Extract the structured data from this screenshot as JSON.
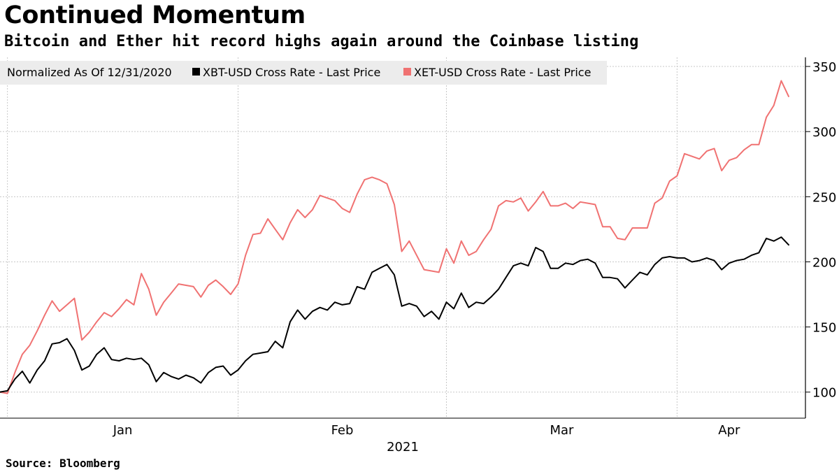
{
  "header": {
    "title": "Continued Momentum",
    "subtitle": "Bitcoin and Ether hit record highs again around the Coinbase listing"
  },
  "footer": {
    "source": "Source: Bloomberg"
  },
  "colors": {
    "xbt": "#000000",
    "xet": "#f07272",
    "grid": "#c8c8c8",
    "legend_bg": "#ececec"
  },
  "chart_data": {
    "type": "line",
    "legend": {
      "placement": "top-left",
      "entries": [
        "Normalized As Of 12/31/2020",
        "XBT-USD Cross Rate - Last Price",
        "XET-USD Cross Rate - Last Price"
      ]
    },
    "x_labels": [
      "Jan",
      "Feb",
      "Mar",
      "Apr"
    ],
    "x_year": "2021",
    "x_range": [
      "2020-12-31",
      "2021-04-16"
    ],
    "y_ticks": [
      100,
      150,
      200,
      250,
      300,
      350
    ],
    "ylim": [
      80,
      357
    ],
    "y_axis_side": "right",
    "grid": true,
    "series": [
      {
        "name": "XBT-USD Cross Rate - Last Price",
        "color": "#000000",
        "x": [
          "2020-12-31",
          "2021-01-01",
          "2021-01-02",
          "2021-01-03",
          "2021-01-04",
          "2021-01-05",
          "2021-01-06",
          "2021-01-07",
          "2021-01-08",
          "2021-01-09",
          "2021-01-10",
          "2021-01-11",
          "2021-01-12",
          "2021-01-13",
          "2021-01-14",
          "2021-01-15",
          "2021-01-16",
          "2021-01-17",
          "2021-01-18",
          "2021-01-19",
          "2021-01-20",
          "2021-01-21",
          "2021-01-22",
          "2021-01-23",
          "2021-01-24",
          "2021-01-25",
          "2021-01-26",
          "2021-01-27",
          "2021-01-28",
          "2021-01-29",
          "2021-01-30",
          "2021-01-31",
          "2021-02-01",
          "2021-02-02",
          "2021-02-03",
          "2021-02-04",
          "2021-02-05",
          "2021-02-06",
          "2021-02-07",
          "2021-02-08",
          "2021-02-09",
          "2021-02-10",
          "2021-02-11",
          "2021-02-12",
          "2021-02-13",
          "2021-02-14",
          "2021-02-15",
          "2021-02-16",
          "2021-02-17",
          "2021-02-18",
          "2021-02-19",
          "2021-02-20",
          "2021-02-21",
          "2021-02-22",
          "2021-02-23",
          "2021-02-24",
          "2021-02-25",
          "2021-02-26",
          "2021-02-27",
          "2021-02-28",
          "2021-03-01",
          "2021-03-02",
          "2021-03-03",
          "2021-03-04",
          "2021-03-05",
          "2021-03-06",
          "2021-03-07",
          "2021-03-08",
          "2021-03-09",
          "2021-03-10",
          "2021-03-11",
          "2021-03-12",
          "2021-03-13",
          "2021-03-14",
          "2021-03-15",
          "2021-03-16",
          "2021-03-17",
          "2021-03-18",
          "2021-03-19",
          "2021-03-20",
          "2021-03-21",
          "2021-03-22",
          "2021-03-23",
          "2021-03-24",
          "2021-03-25",
          "2021-03-26",
          "2021-03-27",
          "2021-03-28",
          "2021-03-29",
          "2021-03-30",
          "2021-03-31",
          "2021-04-01",
          "2021-04-02",
          "2021-04-03",
          "2021-04-04",
          "2021-04-05",
          "2021-04-06",
          "2021-04-07",
          "2021-04-08",
          "2021-04-09",
          "2021-04-10",
          "2021-04-11",
          "2021-04-12",
          "2021-04-13",
          "2021-04-14",
          "2021-04-15",
          "2021-04-16"
        ],
        "values": [
          100,
          101,
          110,
          116,
          107,
          117,
          124,
          137,
          138,
          141,
          132,
          117,
          120,
          129,
          134,
          125,
          124,
          126,
          125,
          126,
          121,
          108,
          115,
          112,
          110,
          113,
          111,
          107,
          115,
          119,
          120,
          113,
          117,
          124,
          129,
          130,
          131,
          139,
          134,
          154,
          163,
          156,
          162,
          165,
          163,
          169,
          167,
          168,
          181,
          179,
          192,
          195,
          198,
          190,
          166,
          168,
          166,
          158,
          162,
          156,
          169,
          164,
          176,
          165,
          169,
          168,
          173,
          179,
          188,
          197,
          199,
          197,
          211,
          208,
          195,
          195,
          199,
          198,
          201,
          202,
          199,
          188,
          188,
          187,
          180,
          186,
          192,
          190,
          198,
          203,
          204,
          203,
          203,
          200,
          201,
          203,
          201,
          194,
          199,
          201,
          202,
          205,
          207,
          218,
          216,
          219,
          213
        ]
      },
      {
        "name": "XET-USD Cross Rate - Last Price",
        "color": "#f07272",
        "x": [
          "2020-12-31",
          "2021-01-01",
          "2021-01-02",
          "2021-01-03",
          "2021-01-04",
          "2021-01-05",
          "2021-01-06",
          "2021-01-07",
          "2021-01-08",
          "2021-01-09",
          "2021-01-10",
          "2021-01-11",
          "2021-01-12",
          "2021-01-13",
          "2021-01-14",
          "2021-01-15",
          "2021-01-16",
          "2021-01-17",
          "2021-01-18",
          "2021-01-19",
          "2021-01-20",
          "2021-01-21",
          "2021-01-22",
          "2021-01-23",
          "2021-01-24",
          "2021-01-25",
          "2021-01-26",
          "2021-01-27",
          "2021-01-28",
          "2021-01-29",
          "2021-01-30",
          "2021-01-31",
          "2021-02-01",
          "2021-02-02",
          "2021-02-03",
          "2021-02-04",
          "2021-02-05",
          "2021-02-06",
          "2021-02-07",
          "2021-02-08",
          "2021-02-09",
          "2021-02-10",
          "2021-02-11",
          "2021-02-12",
          "2021-02-13",
          "2021-02-14",
          "2021-02-15",
          "2021-02-16",
          "2021-02-17",
          "2021-02-18",
          "2021-02-19",
          "2021-02-20",
          "2021-02-21",
          "2021-02-22",
          "2021-02-23",
          "2021-02-24",
          "2021-02-25",
          "2021-02-26",
          "2021-02-27",
          "2021-02-28",
          "2021-03-01",
          "2021-03-02",
          "2021-03-03",
          "2021-03-04",
          "2021-03-05",
          "2021-03-06",
          "2021-03-07",
          "2021-03-08",
          "2021-03-09",
          "2021-03-10",
          "2021-03-11",
          "2021-03-12",
          "2021-03-13",
          "2021-03-14",
          "2021-03-15",
          "2021-03-16",
          "2021-03-17",
          "2021-03-18",
          "2021-03-19",
          "2021-03-20",
          "2021-03-21",
          "2021-03-22",
          "2021-03-23",
          "2021-03-24",
          "2021-03-25",
          "2021-03-26",
          "2021-03-27",
          "2021-03-28",
          "2021-03-29",
          "2021-03-30",
          "2021-03-31",
          "2021-04-01",
          "2021-04-02",
          "2021-04-03",
          "2021-04-04",
          "2021-04-05",
          "2021-04-06",
          "2021-04-07",
          "2021-04-08",
          "2021-04-09",
          "2021-04-10",
          "2021-04-11",
          "2021-04-12",
          "2021-04-13",
          "2021-04-14",
          "2021-04-15",
          "2021-04-16"
        ],
        "values": [
          100,
          99,
          115,
          129,
          136,
          147,
          159,
          170,
          162,
          167,
          172,
          140,
          146,
          154,
          161,
          158,
          164,
          171,
          167,
          191,
          179,
          159,
          169,
          176,
          183,
          182,
          181,
          173,
          182,
          186,
          181,
          175,
          183,
          205,
          221,
          222,
          233,
          225,
          217,
          230,
          240,
          234,
          240,
          251,
          249,
          247,
          241,
          238,
          252,
          263,
          265,
          263,
          260,
          244,
          208,
          216,
          205,
          194,
          193,
          192,
          210,
          199,
          216,
          205,
          208,
          217,
          225,
          243,
          247,
          246,
          249,
          239,
          246,
          254,
          243,
          243,
          245,
          241,
          246,
          245,
          244,
          227,
          227,
          218,
          217,
          226,
          226,
          226,
          245,
          249,
          262,
          266,
          283,
          281,
          279,
          285,
          287,
          270,
          278,
          280,
          286,
          290,
          290,
          311,
          320,
          339,
          327
        ]
      }
    ]
  }
}
